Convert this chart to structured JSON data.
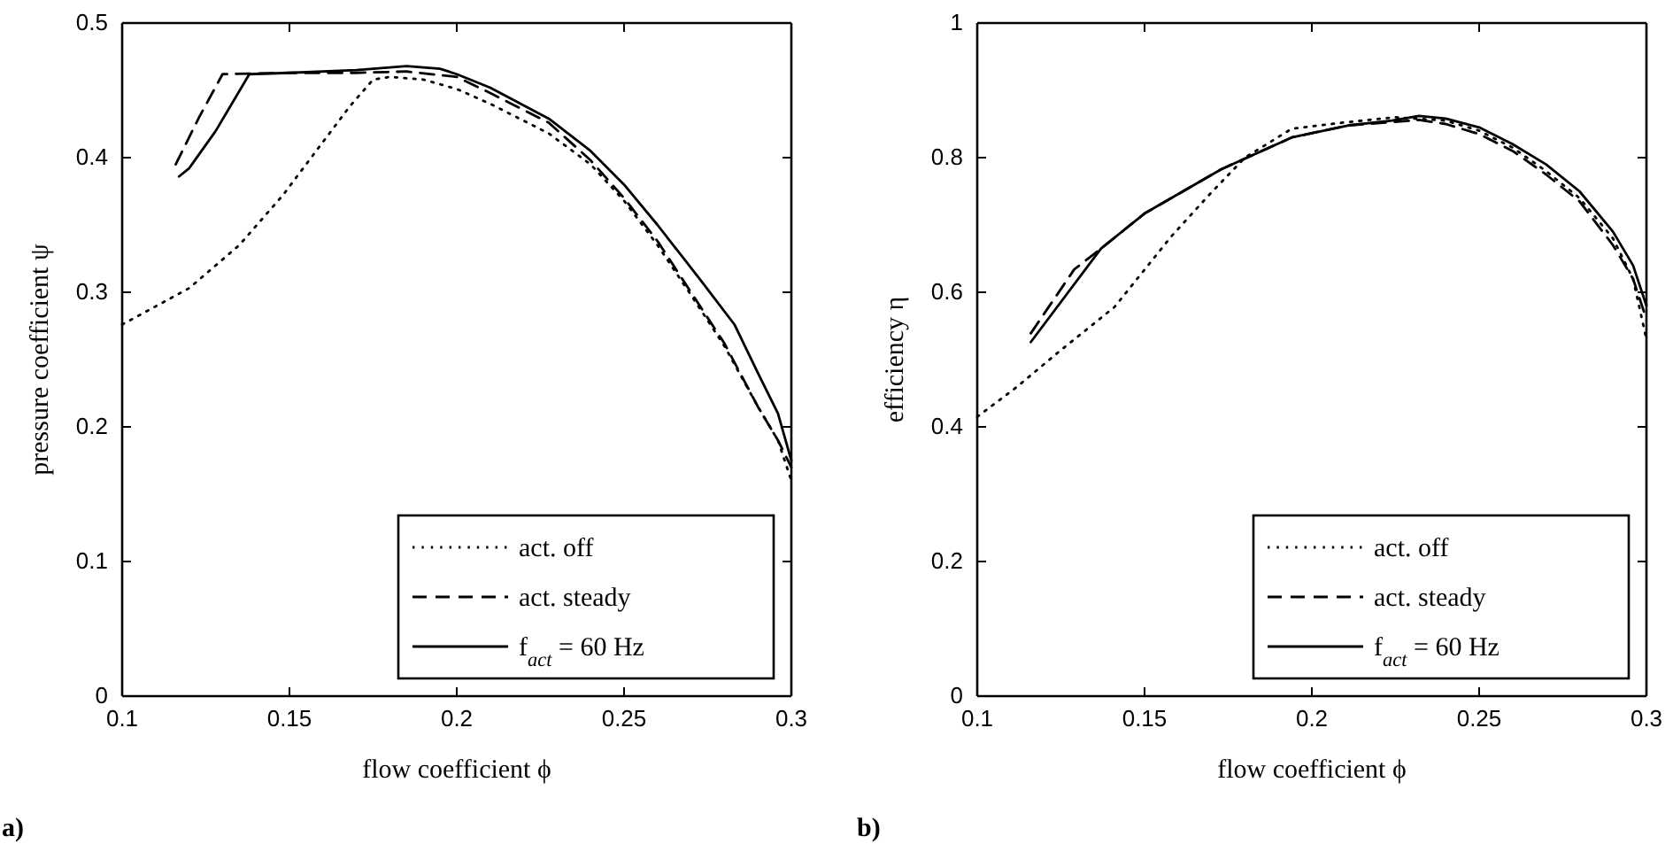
{
  "chart_data": [
    {
      "type": "line",
      "xlabel": "flow coefficient ϕ",
      "ylabel": "pressure coefficient ψ",
      "xlim": [
        0.1,
        0.3
      ],
      "ylim": [
        0,
        0.5
      ],
      "xticks": [
        0.1,
        0.15,
        0.2,
        0.25,
        0.3
      ],
      "yticks": [
        0,
        0.1,
        0.2,
        0.3,
        0.4,
        0.5
      ],
      "grid": false,
      "legend": "bottom right",
      "marker": "none",
      "annotations": [
        "a)"
      ],
      "series": [
        {
          "name": "act. off",
          "color": "#000000",
          "line_style": "dotted",
          "x": [
            0.1,
            0.12,
            0.135,
            0.148,
            0.158,
            0.168,
            0.175,
            0.18,
            0.19,
            0.2,
            0.21,
            0.2275,
            0.24,
            0.25,
            0.26,
            0.27,
            0.28,
            0.29,
            0.296,
            0.3
          ],
          "values": [
            0.276,
            0.303,
            0.335,
            0.372,
            0.405,
            0.438,
            0.458,
            0.46,
            0.458,
            0.451,
            0.44,
            0.418,
            0.395,
            0.368,
            0.335,
            0.298,
            0.26,
            0.215,
            0.19,
            0.16
          ]
        },
        {
          "name": "act. steady",
          "color": "#000000",
          "line_style": "dashed",
          "x": [
            0.116,
            0.123,
            0.13,
            0.15,
            0.17,
            0.185,
            0.2,
            0.21,
            0.2275,
            0.24,
            0.25,
            0.26,
            0.27,
            0.28,
            0.29,
            0.296,
            0.3
          ],
          "values": [
            0.395,
            0.43,
            0.462,
            0.463,
            0.463,
            0.464,
            0.46,
            0.448,
            0.426,
            0.398,
            0.37,
            0.338,
            0.3,
            0.262,
            0.215,
            0.19,
            0.17
          ]
        },
        {
          "name": "f$_{act}$ = 60 Hz",
          "color": "#000000",
          "line_style": "solid",
          "x": [
            0.117,
            0.12,
            0.128,
            0.138,
            0.15,
            0.17,
            0.185,
            0.195,
            0.2,
            0.21,
            0.2275,
            0.24,
            0.25,
            0.26,
            0.2735,
            0.283,
            0.29,
            0.296,
            0.3
          ],
          "values": [
            0.386,
            0.392,
            0.42,
            0.462,
            0.463,
            0.465,
            0.468,
            0.466,
            0.462,
            0.452,
            0.429,
            0.405,
            0.38,
            0.35,
            0.307,
            0.276,
            0.24,
            0.21,
            0.175
          ]
        }
      ]
    },
    {
      "type": "line",
      "xlabel": "flow coefficient ϕ",
      "ylabel": "efficiency η",
      "xlim": [
        0.1,
        0.3
      ],
      "ylim": [
        0,
        1
      ],
      "xticks": [
        0.1,
        0.15,
        0.2,
        0.25,
        0.3
      ],
      "yticks": [
        0,
        0.2,
        0.4,
        0.6,
        0.8,
        1
      ],
      "grid": false,
      "legend": "bottom right",
      "marker": "none",
      "annotations": [
        "b)"
      ],
      "series": [
        {
          "name": "act. off",
          "color": "#000000",
          "line_style": "dotted",
          "x": [
            0.1,
            0.112,
            0.124,
            0.141,
            0.158,
            0.169,
            0.18,
            0.194,
            0.211,
            0.225,
            0.24,
            0.25,
            0.26,
            0.27,
            0.28,
            0.29,
            0.296,
            0.3
          ],
          "values": [
            0.415,
            0.46,
            0.51,
            0.578,
            0.683,
            0.743,
            0.8,
            0.843,
            0.853,
            0.86,
            0.855,
            0.84,
            0.815,
            0.78,
            0.74,
            0.68,
            0.62,
            0.53
          ]
        },
        {
          "name": "act. steady",
          "color": "#000000",
          "line_style": "dashed",
          "x": [
            0.116,
            0.129,
            0.137,
            0.15,
            0.173,
            0.194,
            0.211,
            0.224,
            0.232,
            0.24,
            0.25,
            0.26,
            0.27,
            0.28,
            0.29,
            0.296,
            0.3
          ],
          "values": [
            0.539,
            0.634,
            0.665,
            0.717,
            0.783,
            0.83,
            0.848,
            0.853,
            0.856,
            0.85,
            0.835,
            0.81,
            0.775,
            0.735,
            0.67,
            0.62,
            0.56
          ]
        },
        {
          "name": "f$_{act}$ = 60 Hz",
          "color": "#000000",
          "line_style": "solid",
          "x": [
            0.116,
            0.137,
            0.15,
            0.173,
            0.194,
            0.211,
            0.224,
            0.232,
            0.24,
            0.25,
            0.26,
            0.27,
            0.28,
            0.29,
            0.296,
            0.3
          ],
          "values": [
            0.526,
            0.665,
            0.717,
            0.783,
            0.83,
            0.848,
            0.855,
            0.862,
            0.858,
            0.845,
            0.82,
            0.79,
            0.75,
            0.69,
            0.64,
            0.58
          ]
        }
      ]
    }
  ]
}
